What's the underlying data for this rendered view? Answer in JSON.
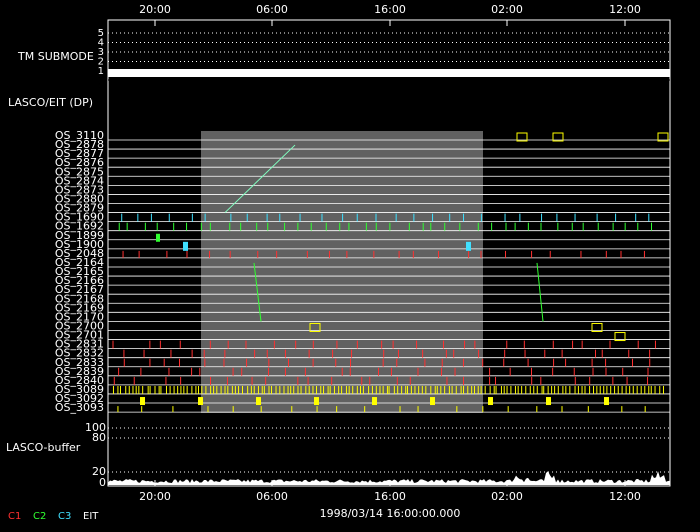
{
  "top_axis": [
    "20:00",
    "06:00",
    "16:00",
    "02:00",
    "12:00"
  ],
  "bottom_axis": [
    "20:00",
    "06:00",
    "16:00",
    "02:00",
    "12:00"
  ],
  "date_label": "1998/03/14 16:00:00.000",
  "submode_panel": {
    "label": "TM SUBMODE",
    "levels": [
      "5",
      "4",
      "3",
      "2",
      "1"
    ]
  },
  "section_label": "LASCO/EIT (DP)",
  "rows": [
    "OS_3110",
    "OS_2878",
    "OS_2877",
    "OS_2876",
    "OS_2875",
    "OS_2874",
    "OS_2873",
    "OS_2880",
    "OS_2879",
    "OS_1690",
    "OS_1692",
    "OS_1899",
    "OS_1900",
    "OS_2048",
    "OS_2164",
    "OS_2165",
    "OS_2166",
    "OS_2167",
    "OS_2168",
    "OS_2169",
    "OS_2170",
    "OS_2700",
    "OS_2701",
    "OS_2831",
    "OS_2832",
    "OS_2833",
    "OS_2839",
    "OS_2840",
    "OS_3089",
    "OS_3092",
    "OS_3093"
  ],
  "buffer_panel": {
    "label": "LASCO-buffer",
    "levels": [
      "100",
      "80",
      "20",
      "0"
    ]
  },
  "legend": [
    {
      "name": "C1",
      "color": "#ff3030"
    },
    {
      "name": "C2",
      "color": "#30ff30"
    },
    {
      "name": "C3",
      "color": "#40e0ff"
    },
    {
      "name": "EIT",
      "color": "#ffffff"
    }
  ]
}
